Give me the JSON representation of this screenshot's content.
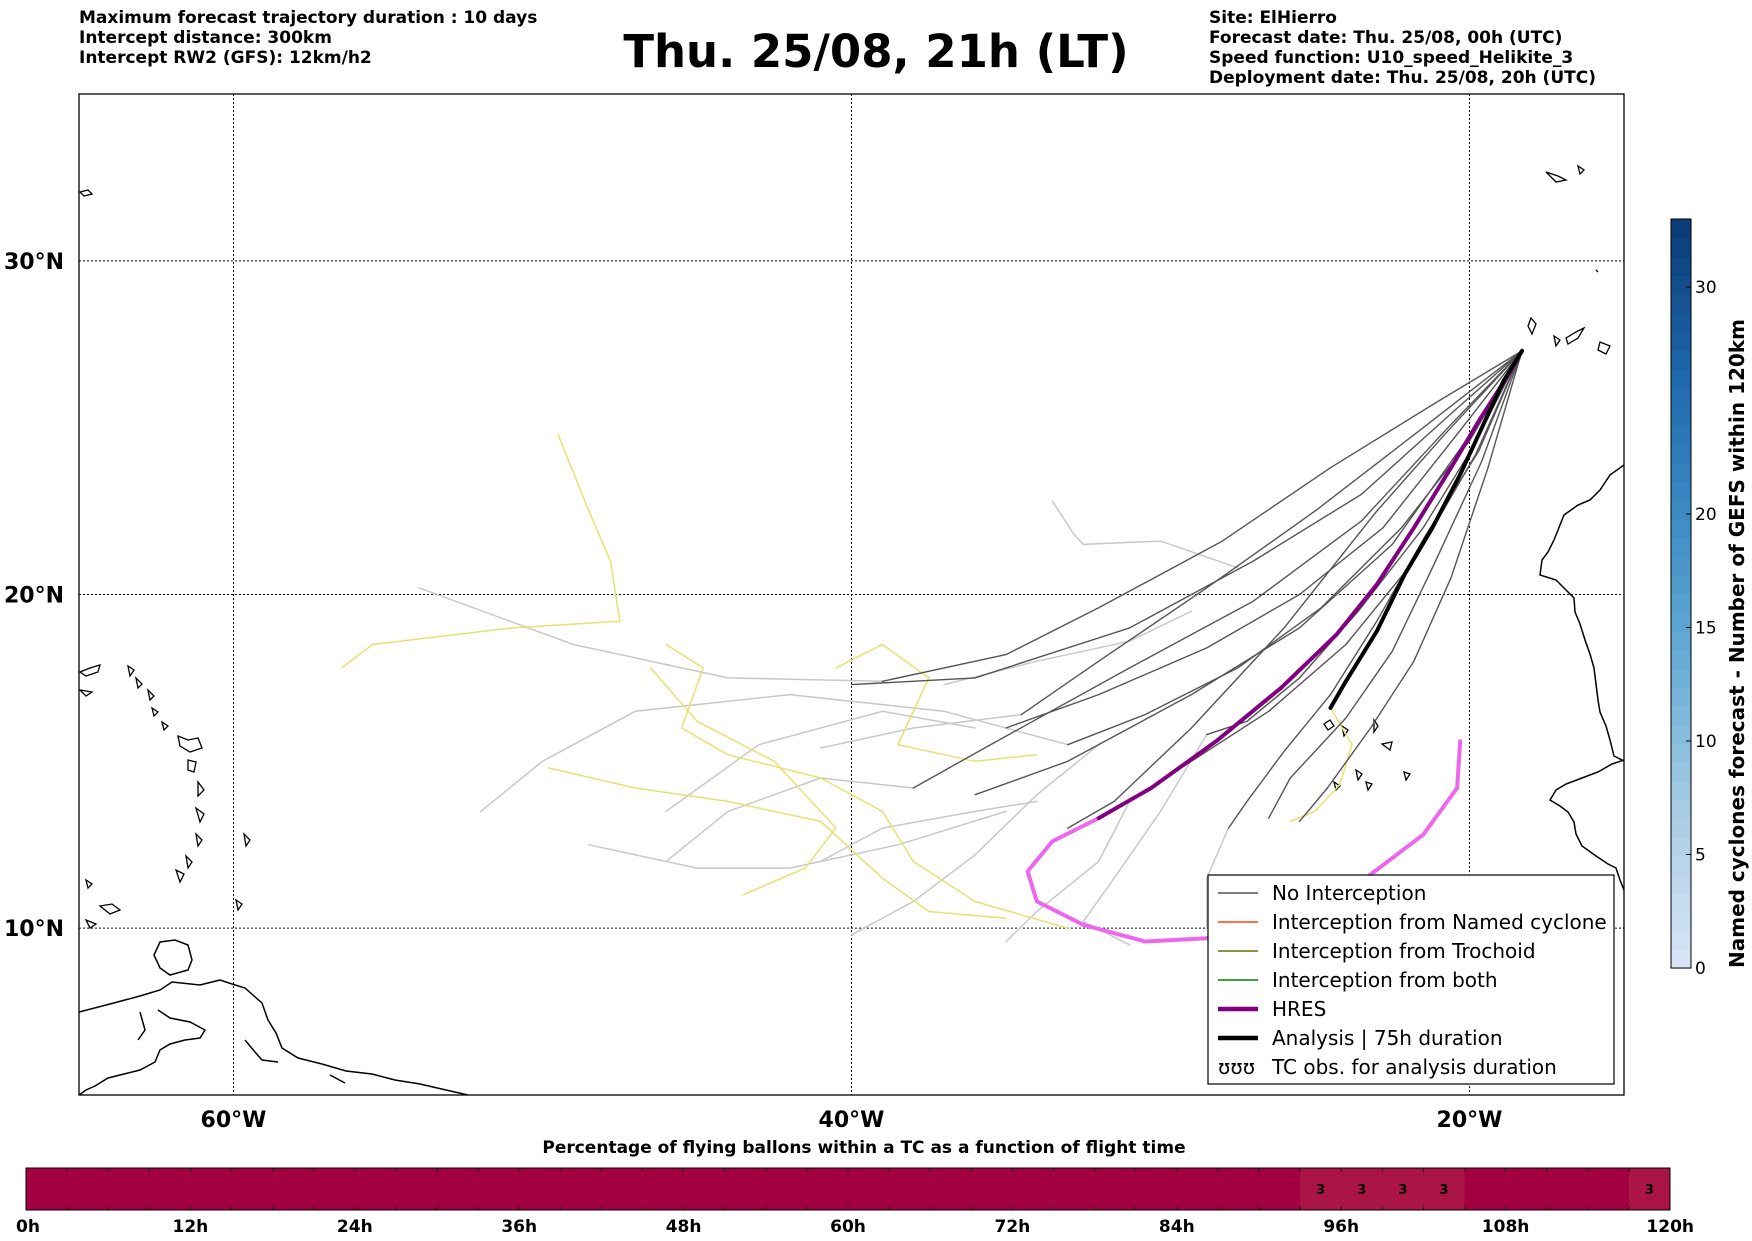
{
  "header": {
    "left": [
      "Maximum forecast trajectory duration : 10 days",
      "Intercept distance: 300km",
      "Intercept RW2 (GFS):  12km/h2"
    ],
    "title": "Thu. 25/08, 21h (LT)",
    "right": [
      "Site: ElHierro",
      "Forecast date: Thu. 25/08, 00h (UTC)",
      "Speed function: U10_speed_Helikite_3",
      "Deployment date: Thu. 25/08, 20h (UTC)"
    ]
  },
  "chart_data": [
    {
      "type": "line",
      "description_axes": "map of trajectories, longitude (W) vs latitude (N)",
      "xlim": [
        -65,
        -15
      ],
      "ylim": [
        5,
        35
      ],
      "grid": true,
      "x_ticks": [
        {
          "value": -60,
          "label": "60°W"
        },
        {
          "value": -40,
          "label": "40°W"
        },
        {
          "value": -20,
          "label": "20°W"
        }
      ],
      "y_ticks": [
        {
          "value": 10,
          "label": "10°N"
        },
        {
          "value": 20,
          "label": "20°N"
        },
        {
          "value": 30,
          "label": "30°N"
        }
      ],
      "colors": {
        "no_interception": "#555555",
        "named_cyclone": "#ff4500",
        "trochoid": "#6b6b00",
        "both": "#008000",
        "hres": "#800080",
        "analysis": "#000000",
        "post_yellow": "#e8e070",
        "post_grey": "#c8c8c8",
        "hres_post": "#ee66ee"
      },
      "legend": {
        "position": "lower right",
        "entries": [
          {
            "label": "No Interception",
            "style": "thin",
            "color": "#555555"
          },
          {
            "label": "Interception from Named cyclone",
            "style": "thin",
            "color": "#ff4500"
          },
          {
            "label": "Interception from Trochoid",
            "style": "thin",
            "color": "#6b6b00"
          },
          {
            "label": "Interception from both",
            "style": "thin",
            "color": "#008000"
          },
          {
            "label": "HRES",
            "style": "thick",
            "color": "#800080"
          },
          {
            "label": "Analysis | 75h duration",
            "style": "thick",
            "color": "#000000"
          },
          {
            "label": "TC obs. for analysis duration",
            "style": "symbol",
            "symbol": "ʊʊʊ"
          }
        ]
      },
      "series": [
        {
          "name": "HRES",
          "points": [
            [
              -18.3,
              27.3
            ],
            [
              -18.8,
              26.5
            ],
            [
              -19.7,
              25.2
            ],
            [
              -20.6,
              23.8
            ],
            [
              -21.8,
              22.0
            ],
            [
              -23.0,
              20.3
            ],
            [
              -24.3,
              18.8
            ],
            [
              -26.1,
              17.2
            ],
            [
              -28.2,
              15.6
            ],
            [
              -30.3,
              14.2
            ],
            [
              -32.0,
              13.3
            ]
          ]
        },
        {
          "name": "Analysis | 75h duration",
          "points": [
            [
              -18.3,
              27.3
            ],
            [
              -18.9,
              26.4
            ],
            [
              -19.6,
              25.0
            ],
            [
              -20.3,
              23.6
            ],
            [
              -21.2,
              22.0
            ],
            [
              -22.1,
              20.6
            ],
            [
              -23.0,
              18.9
            ],
            [
              -24.0,
              17.4
            ],
            [
              -24.5,
              16.6
            ]
          ]
        }
      ],
      "ensemble_no_interception": [
        [
          [
            -18.3,
            27.3
          ],
          [
            -20.5,
            25.5
          ],
          [
            -23.5,
            23.0
          ],
          [
            -27,
            21.0
          ],
          [
            -31,
            19.0
          ],
          [
            -36,
            17.5
          ],
          [
            -40,
            17.3
          ]
        ],
        [
          [
            -18.3,
            27.3
          ],
          [
            -21,
            25.8
          ],
          [
            -24.5,
            23.8
          ],
          [
            -28,
            21.6
          ],
          [
            -32,
            19.6
          ],
          [
            -35,
            18.2
          ],
          [
            -39,
            17.4
          ]
        ],
        [
          [
            -18.3,
            27.3
          ],
          [
            -20.7,
            25.0
          ],
          [
            -23.5,
            22.2
          ],
          [
            -27,
            19.8
          ],
          [
            -31,
            17.8
          ],
          [
            -35.5,
            15.5
          ],
          [
            -38,
            14.2
          ]
        ],
        [
          [
            -18.3,
            27.3
          ],
          [
            -20.2,
            24.5
          ],
          [
            -22.5,
            21.5
          ],
          [
            -25.5,
            19.0
          ],
          [
            -29,
            17.0
          ],
          [
            -33,
            15.0
          ],
          [
            -36,
            14.0
          ]
        ],
        [
          [
            -18.3,
            27.3
          ],
          [
            -19.8,
            24.2
          ],
          [
            -21.8,
            21.0
          ],
          [
            -24,
            18.5
          ],
          [
            -26.5,
            16.5
          ],
          [
            -29,
            15.0
          ],
          [
            -31,
            13.8
          ]
        ],
        [
          [
            -18.3,
            27.3
          ],
          [
            -19.6,
            24.0
          ],
          [
            -21.2,
            20.8
          ],
          [
            -22.5,
            18.3
          ],
          [
            -24,
            16.3
          ],
          [
            -25.8,
            14.5
          ],
          [
            -26.5,
            13.3
          ]
        ],
        [
          [
            -18.3,
            27.3
          ],
          [
            -19.4,
            23.8
          ],
          [
            -20.6,
            20.5
          ],
          [
            -21.8,
            18.0
          ],
          [
            -23.2,
            16.0
          ],
          [
            -24.6,
            14.2
          ],
          [
            -25.5,
            13.2
          ]
        ],
        [
          [
            -18.3,
            27.3
          ],
          [
            -20.4,
            24.8
          ],
          [
            -22.8,
            22.0
          ],
          [
            -25.5,
            20.0
          ],
          [
            -28.5,
            18.4
          ],
          [
            -32,
            17.0
          ],
          [
            -35,
            16.0
          ]
        ],
        [
          [
            -18.3,
            27.3
          ],
          [
            -20.0,
            24.6
          ],
          [
            -22.2,
            22.0
          ],
          [
            -24.8,
            19.6
          ],
          [
            -27.5,
            17.8
          ],
          [
            -30.5,
            16.4
          ],
          [
            -33,
            15.5
          ]
        ],
        [
          [
            -18.3,
            27.3
          ],
          [
            -21.5,
            25.0
          ],
          [
            -25.0,
            22.5
          ],
          [
            -28.5,
            20.2
          ],
          [
            -32.0,
            18.0
          ],
          [
            -34.5,
            16.4
          ]
        ],
        [
          [
            -18.3,
            27.3
          ],
          [
            -20.8,
            24.8
          ],
          [
            -23.0,
            22.5
          ],
          [
            -26.0,
            19.0
          ],
          [
            -29.0,
            16.0
          ],
          [
            -31.5,
            13.8
          ],
          [
            -33,
            13.0
          ]
        ],
        [
          [
            -18.3,
            27.3
          ],
          [
            -19.9,
            24.4
          ],
          [
            -21.5,
            22.0
          ],
          [
            -23.6,
            19.5
          ],
          [
            -25.5,
            17.5
          ],
          [
            -27.2,
            16.2
          ],
          [
            -28.5,
            15.8
          ]
        ],
        [
          [
            -18.3,
            27.3
          ],
          [
            -19.7,
            24.3
          ],
          [
            -21.4,
            21.8
          ],
          [
            -23.0,
            19.2
          ],
          [
            -24.5,
            17.0
          ],
          [
            -26.0,
            15.3
          ],
          [
            -27.2,
            13.8
          ],
          [
            -27.8,
            13.0
          ]
        ]
      ],
      "ensemble_post_yellow": [
        [
          [
            -49.5,
            24.8
          ],
          [
            -48.5,
            22.5
          ],
          [
            -47.8,
            21.0
          ],
          [
            -47.5,
            19.2
          ],
          [
            -51,
            19.0
          ],
          [
            -55.5,
            18.5
          ],
          [
            -56.5,
            17.8
          ]
        ],
        [
          [
            -46,
            18.5
          ],
          [
            -44.8,
            17.8
          ],
          [
            -45.5,
            16.0
          ],
          [
            -44,
            15.2
          ],
          [
            -41,
            14.5
          ],
          [
            -39,
            13.5
          ],
          [
            -38,
            12.0
          ],
          [
            -36,
            10.8
          ],
          [
            -33,
            10.0
          ]
        ],
        [
          [
            -40.5,
            17.8
          ],
          [
            -39,
            18.5
          ],
          [
            -37.5,
            17.5
          ],
          [
            -38.5,
            15.5
          ],
          [
            -36,
            15.0
          ],
          [
            -34,
            15.2
          ]
        ],
        [
          [
            -49.8,
            14.8
          ],
          [
            -47,
            14.2
          ],
          [
            -44,
            13.8
          ],
          [
            -41,
            13.2
          ],
          [
            -39,
            11.5
          ],
          [
            -37.5,
            10.5
          ],
          [
            -35,
            10.3
          ]
        ],
        [
          [
            -46.5,
            17.8
          ],
          [
            -45,
            16.2
          ],
          [
            -42.5,
            15.0
          ],
          [
            -40.5,
            13.0
          ],
          [
            -41.5,
            11.8
          ],
          [
            -43.5,
            11.0
          ]
        ],
        [
          [
            -24.5,
            16.6
          ],
          [
            -23.8,
            15.5
          ],
          [
            -24.2,
            14.3
          ],
          [
            -25,
            13.5
          ],
          [
            -25.8,
            13.2
          ]
        ]
      ],
      "ensemble_post_grey": [
        [
          [
            -37,
            17.3
          ],
          [
            -34,
            18.0
          ],
          [
            -31,
            18.6
          ],
          [
            -29,
            19.5
          ]
        ],
        [
          [
            -34,
            13.8
          ],
          [
            -36,
            13.5
          ],
          [
            -39,
            13.0
          ],
          [
            -41,
            12.0
          ]
        ],
        [
          [
            -38,
            14.2
          ],
          [
            -41,
            14.5
          ],
          [
            -44,
            13.5
          ],
          [
            -46,
            12.0
          ]
        ],
        [
          [
            -32,
            15.5
          ],
          [
            -34,
            14.0
          ],
          [
            -36,
            12.2
          ],
          [
            -38,
            10.8
          ],
          [
            -40,
            9.8
          ]
        ],
        [
          [
            -31,
            13.8
          ],
          [
            -32,
            12.0
          ],
          [
            -34,
            10.5
          ],
          [
            -35,
            9.6
          ]
        ],
        [
          [
            -28.5,
            15.8
          ],
          [
            -30,
            13.5
          ],
          [
            -31.5,
            11.5
          ],
          [
            -32.5,
            10.2
          ],
          [
            -31,
            9.5
          ]
        ],
        [
          [
            -36,
            16.0
          ],
          [
            -39,
            16.5
          ],
          [
            -43,
            15.5
          ],
          [
            -46,
            13.5
          ]
        ],
        [
          [
            -33,
            15.5
          ],
          [
            -37,
            16.5
          ],
          [
            -42,
            17.0
          ],
          [
            -47,
            16.5
          ],
          [
            -50,
            15.0
          ],
          [
            -52,
            13.5
          ]
        ],
        [
          [
            -34.5,
            16.4
          ],
          [
            -38,
            16.0
          ],
          [
            -41,
            15.4
          ]
        ],
        [
          [
            -35,
            13.5
          ],
          [
            -38.5,
            12.5
          ],
          [
            -42,
            11.8
          ],
          [
            -45,
            11.8
          ],
          [
            -48.5,
            12.5
          ]
        ],
        [
          [
            -33.5,
            22.8
          ],
          [
            -32.8,
            21.8
          ],
          [
            -32.5,
            21.5
          ],
          [
            -30,
            21.6
          ],
          [
            -27.5,
            20.8
          ]
        ],
        [
          [
            -39,
            17.4
          ],
          [
            -44,
            17.5
          ],
          [
            -49,
            18.5
          ],
          [
            -54,
            20.2
          ]
        ],
        [
          [
            -27.8,
            13.0
          ],
          [
            -28.5,
            11.5
          ],
          [
            -28.5,
            10.0
          ]
        ]
      ],
      "hres_post": [
        [
          -32.0,
          13.3
        ],
        [
          -33.5,
          12.6
        ],
        [
          -34.3,
          11.7
        ],
        [
          -34.0,
          10.8
        ],
        [
          -32.5,
          10.1
        ],
        [
          -30.5,
          9.6
        ],
        [
          -28.5,
          9.7
        ],
        [
          -26,
          10.4
        ],
        [
          -23.5,
          11.4
        ],
        [
          -21.5,
          12.8
        ],
        [
          -20.4,
          14.2
        ],
        [
          -20.3,
          15.6
        ]
      ]
    },
    {
      "type": "heatmap",
      "title": "Percentage of flying ballons within a TC as a function of flight time",
      "x_ticks": [
        "0h",
        "12h",
        "24h",
        "36h",
        "48h",
        "60h",
        "72h",
        "84h",
        "96h",
        "108h",
        "120h"
      ],
      "x_range_hours": [
        0,
        120
      ],
      "base_color": "#a20040",
      "highlight_color": "#aa1447",
      "cells": [
        {
          "hour_start": 93,
          "hour_end": 96,
          "value": "3"
        },
        {
          "hour_start": 96,
          "hour_end": 99,
          "value": "3"
        },
        {
          "hour_start": 99,
          "hour_end": 102,
          "value": "3"
        },
        {
          "hour_start": 102,
          "hour_end": 105,
          "value": "3"
        },
        {
          "hour_start": 117,
          "hour_end": 120,
          "value": "3"
        }
      ]
    }
  ],
  "colorbar": {
    "label": "Named cyclones forecast - Number of GEFS within 120km",
    "ticks": [
      "0",
      "5",
      "10",
      "15",
      "20",
      "30"
    ],
    "tick_values": [
      0,
      5,
      10,
      15,
      20,
      30
    ],
    "range": [
      0,
      33
    ],
    "colors": [
      "#d6e4f5",
      "#a9cce4",
      "#6aaed6",
      "#3d8dc5",
      "#1f67ac",
      "#0a3d7a"
    ]
  }
}
